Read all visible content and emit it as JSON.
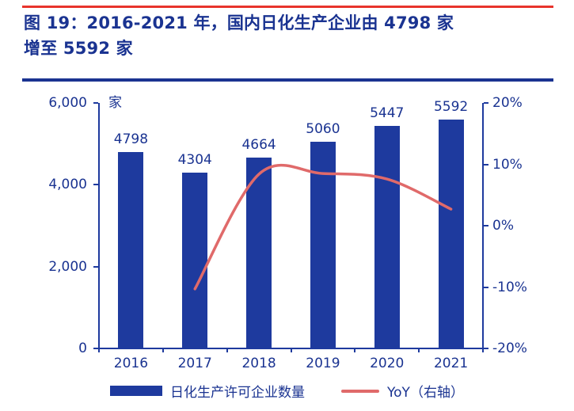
{
  "title": {
    "line1": "图 19：2016-2021 年，国内日化生产企业由 4798 家",
    "line2": "增至 5592 家"
  },
  "chart_data": {
    "type": "bar+line combo",
    "categories": [
      "2016",
      "2017",
      "2018",
      "2019",
      "2020",
      "2021"
    ],
    "series": [
      {
        "name": "日化生产许可企业数量",
        "type": "bar",
        "axis": "left",
        "values": [
          4798,
          4304,
          4664,
          5060,
          5447,
          5592
        ]
      },
      {
        "name": "YoY（右轴）",
        "type": "line",
        "axis": "right",
        "values": [
          null,
          -10.3,
          8.4,
          8.5,
          7.6,
          2.7
        ]
      }
    ],
    "bar_labels": [
      "4798",
      "4304",
      "4664",
      "5060",
      "5447",
      "5592"
    ],
    "left_axis": {
      "unit": "家",
      "min": 0,
      "max": 6000,
      "tick_values": [
        0,
        2000,
        4000,
        6000
      ],
      "tick_labels": [
        "0",
        "2,000",
        "4,000",
        "6,000"
      ]
    },
    "right_axis": {
      "min": -20,
      "max": 20,
      "tick_values": [
        -20,
        -10,
        0,
        10,
        20
      ],
      "tick_labels": [
        "-20%",
        "-10%",
        "0%",
        "10%",
        "20%"
      ]
    },
    "grid": "off",
    "legend_position": "bottom",
    "colors": {
      "bar": "#1E3A9E",
      "line": "#E06A6A",
      "axis": "#1E3A9E",
      "text": "#1A3391",
      "accent_red": "#E8342C"
    }
  }
}
